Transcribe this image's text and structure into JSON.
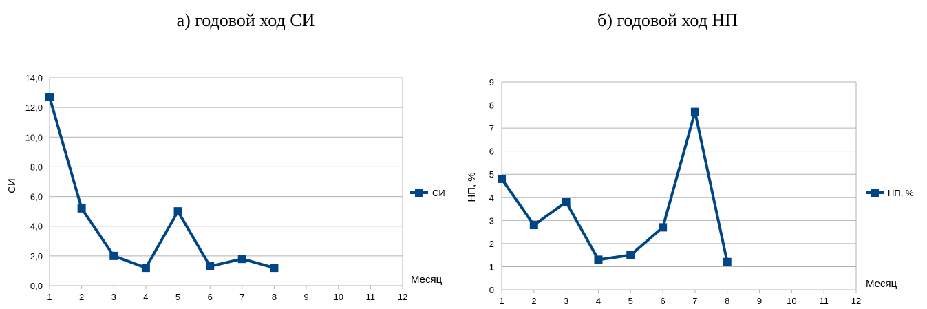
{
  "titles": [
    "а) годовой ход СИ",
    "б) годовой ход НП"
  ],
  "colors": {
    "series": "#004586",
    "grid": "#b3b3b3",
    "text": "#000000"
  },
  "chart_data": [
    {
      "type": "line",
      "title": "а) годовой ход СИ",
      "xlabel": "Месяц",
      "ylabel": "СИ",
      "xlim": [
        1,
        12
      ],
      "ylim": [
        0,
        14
      ],
      "x_ticks": [
        "1",
        "2",
        "3",
        "4",
        "5",
        "6",
        "7",
        "8",
        "9",
        "10",
        "11",
        "12"
      ],
      "y_ticks": [
        "0,0",
        "2,0",
        "4,0",
        "6,0",
        "8,0",
        "10,0",
        "12,0",
        "14,0"
      ],
      "grid": "horizontal",
      "legend": "right",
      "series": [
        {
          "name": "СИ",
          "x": [
            1,
            2,
            3,
            4,
            5,
            6,
            7,
            8
          ],
          "values": [
            12.7,
            5.2,
            2.0,
            1.2,
            5.0,
            1.3,
            1.8,
            1.2
          ]
        }
      ]
    },
    {
      "type": "line",
      "title": "б) годовой ход НП",
      "xlabel": "Месяц",
      "ylabel": "НП, %",
      "xlim": [
        1,
        12
      ],
      "ylim": [
        0,
        9
      ],
      "x_ticks": [
        "1",
        "2",
        "3",
        "4",
        "5",
        "6",
        "7",
        "8",
        "9",
        "10",
        "11",
        "12"
      ],
      "y_ticks": [
        "0",
        "1",
        "2",
        "3",
        "4",
        "5",
        "6",
        "7",
        "8",
        "9"
      ],
      "grid": "horizontal",
      "legend": "right",
      "series": [
        {
          "name": "НП, %",
          "x": [
            1,
            2,
            3,
            4,
            5,
            6,
            7,
            8
          ],
          "values": [
            4.8,
            2.8,
            3.8,
            1.3,
            1.5,
            2.7,
            7.7,
            1.2
          ]
        }
      ]
    }
  ]
}
